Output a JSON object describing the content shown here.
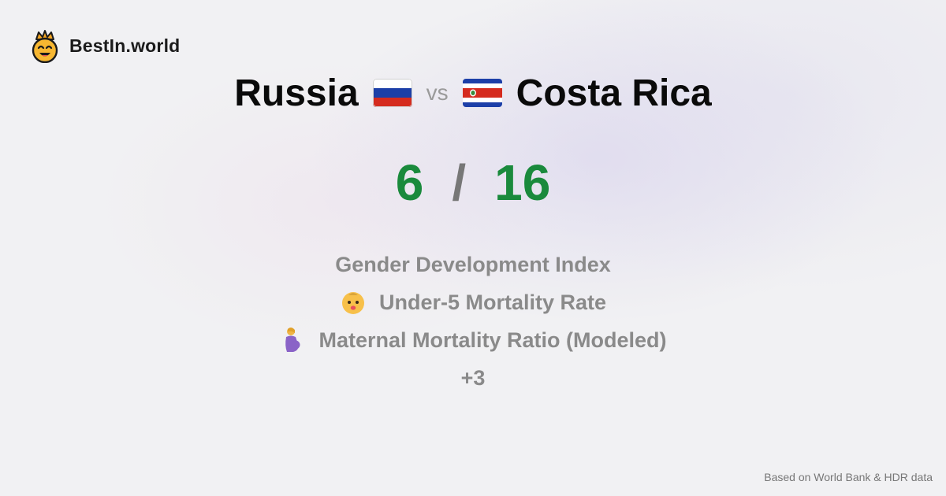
{
  "brand": {
    "name": "BestIn.world",
    "logo_icon": "crown-smiley-icon"
  },
  "comparison": {
    "left_country": "Russia",
    "left_flag_icon": "russia-flag-icon",
    "vs_label": "vs",
    "right_country": "Costa Rica",
    "right_flag_icon": "costa-rica-flag-icon"
  },
  "scores": {
    "left": "6",
    "separator": "/",
    "right": "16",
    "color": "#1a8a3c"
  },
  "metrics": [
    {
      "label": "Gender Development Index",
      "icon": ""
    },
    {
      "label": "Under-5 Mortality Rate",
      "icon": "baby-icon"
    },
    {
      "label": "Maternal Mortality Ratio (Modeled)",
      "icon": "pregnant-woman-icon"
    }
  ],
  "more_label": "+3",
  "footer": {
    "source": "Based on World Bank & HDR data"
  }
}
